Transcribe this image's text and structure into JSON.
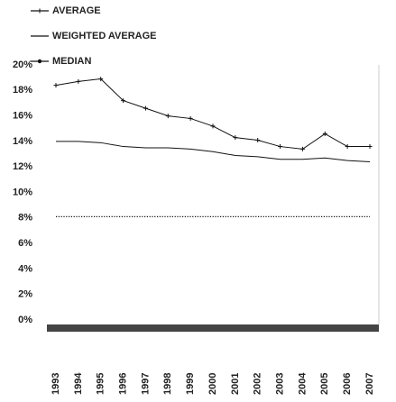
{
  "chart_data": {
    "type": "line",
    "categories": [
      "1993",
      "1994",
      "1995",
      "1996",
      "1997",
      "1998",
      "1999",
      "2000",
      "2001",
      "2002",
      "2003",
      "2004",
      "2005",
      "2006",
      "2007"
    ],
    "series": [
      {
        "name": "AVERAGE",
        "color": "#111111",
        "marker": "star",
        "values": [
          18.4,
          18.7,
          18.9,
          17.2,
          16.6,
          16.0,
          15.8,
          15.2,
          14.3,
          14.1,
          13.6,
          13.4,
          14.6,
          13.6,
          13.6
        ]
      },
      {
        "name": "WEIGHTED AVERAGE",
        "color": "#111111",
        "marker": "none",
        "values": [
          14.0,
          14.0,
          13.9,
          13.6,
          13.5,
          13.5,
          13.4,
          13.2,
          12.9,
          12.8,
          12.6,
          12.6,
          12.7,
          12.5,
          12.4
        ]
      },
      {
        "name": "MEDIAN",
        "color": "#111111",
        "marker": "dot",
        "values": [
          8.1,
          8.1,
          8.1,
          8.1,
          8.1,
          8.1,
          8.1,
          8.1,
          8.1,
          8.1,
          8.1,
          8.1,
          8.1,
          8.1,
          8.1
        ]
      }
    ],
    "ylim": [
      0,
      20
    ],
    "yticks": [
      {
        "value": 0,
        "label": "0%"
      },
      {
        "value": 2,
        "label": "2%"
      },
      {
        "value": 4,
        "label": "4%"
      },
      {
        "value": 6,
        "label": "6%"
      },
      {
        "value": 8,
        "label": "8%"
      },
      {
        "value": 10,
        "label": "10%"
      },
      {
        "value": 12,
        "label": "12%"
      },
      {
        "value": 14,
        "label": "14%"
      },
      {
        "value": 16,
        "label": "16%"
      },
      {
        "value": 18,
        "label": "18%"
      },
      {
        "value": 20,
        "label": "20%"
      }
    ],
    "grid": false
  }
}
